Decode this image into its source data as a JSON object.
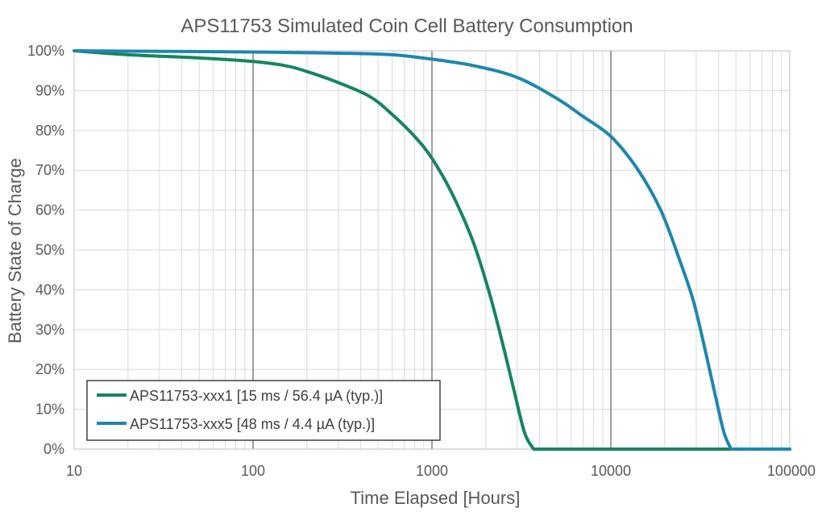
{
  "chart_data": {
    "type": "line",
    "title": "APS11753 Simulated Coin Cell Battery Consumption",
    "xlabel": "Time Elapsed [Hours]",
    "ylabel": "Battery State of Charge",
    "x_scale": "log",
    "xlim": [
      10,
      100000
    ],
    "ylim": [
      0,
      100
    ],
    "x_ticks": [
      10,
      100,
      1000,
      10000,
      100000
    ],
    "x_tick_labels": [
      "10",
      "100",
      "1000",
      "10000",
      "100000"
    ],
    "y_ticks": [
      0,
      10,
      20,
      30,
      40,
      50,
      60,
      70,
      80,
      90,
      100
    ],
    "y_tick_labels": [
      "0%",
      "10%",
      "20%",
      "30%",
      "40%",
      "50%",
      "60%",
      "70%",
      "80%",
      "90%",
      "100%"
    ],
    "grid": true,
    "legend_position": "bottom-left",
    "series": [
      {
        "name": "APS11753-xxx1 [15 ms /  56.4 µA (typ.)]",
        "color": "#16855e",
        "x": [
          10,
          20,
          50,
          100,
          150,
          200,
          300,
          450,
          600,
          800,
          1000,
          1300,
          1700,
          2100,
          2500,
          2900,
          3300,
          3700,
          100000
        ],
        "y": [
          100,
          99,
          98.2,
          97.3,
          96.3,
          94.8,
          92,
          88.5,
          84,
          78.5,
          73,
          64,
          52,
          39,
          26,
          14,
          4,
          0,
          0
        ]
      },
      {
        "name": "APS11753-xxx5 [48 ms / 4.4 µA (typ.)]",
        "color": "#1d86b1",
        "x": [
          10,
          100,
          300,
          600,
          1000,
          1700,
          3000,
          5000,
          7000,
          10000,
          14000,
          19000,
          24000,
          29000,
          34000,
          39000,
          43000,
          47000,
          100000
        ],
        "y": [
          100,
          99.7,
          99.4,
          99,
          97.9,
          96.3,
          93.3,
          88,
          83.5,
          78.5,
          70.5,
          60,
          48,
          37,
          24,
          12,
          4,
          0,
          0
        ]
      }
    ]
  }
}
